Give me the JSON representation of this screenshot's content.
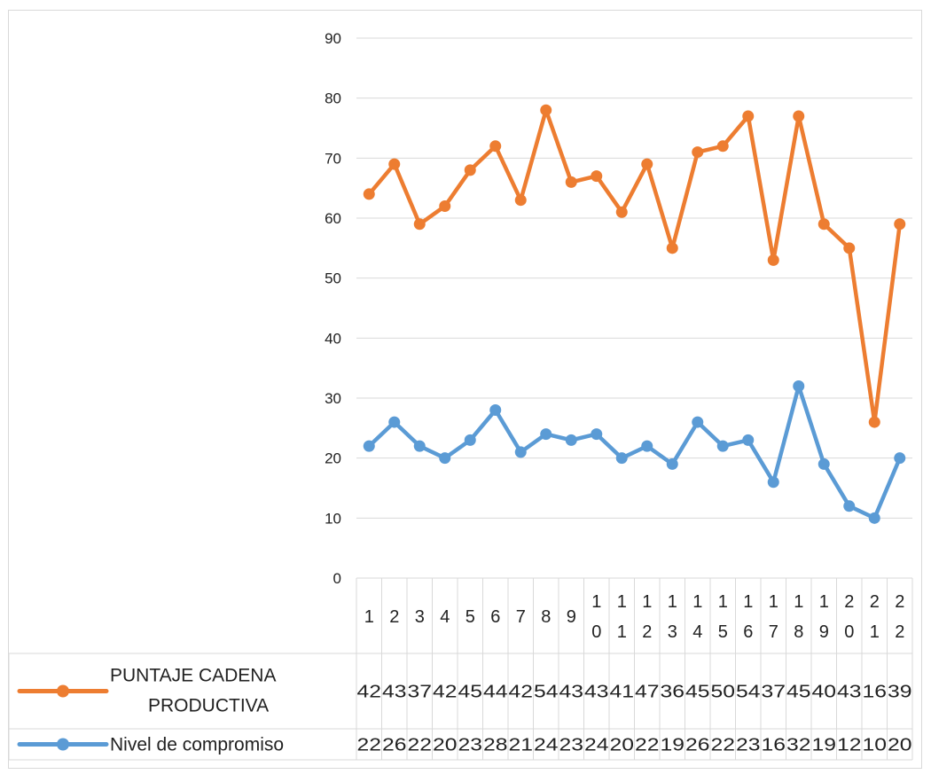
{
  "chart_data": {
    "type": "line",
    "categories": [
      "1",
      "2",
      "3",
      "4",
      "5",
      "6",
      "7",
      "8",
      "9",
      "10",
      "11",
      "12",
      "13",
      "14",
      "15",
      "16",
      "17",
      "18",
      "19",
      "20",
      "21",
      "22"
    ],
    "series": [
      {
        "name": "PUNTAJE CADENA PRODUCTIVA",
        "name_lines": [
          "PUNTAJE CADENA",
          "PRODUCTIVA"
        ],
        "color": "#ED7D31",
        "values": [
          64,
          69,
          59,
          62,
          68,
          72,
          63,
          78,
          66,
          67,
          61,
          69,
          55,
          71,
          72,
          77,
          53,
          77,
          59,
          55,
          26,
          59
        ],
        "table_values": [
          "42",
          "43",
          "37",
          "42",
          "45",
          "44",
          "42",
          "54",
          "43",
          "43",
          "41",
          "47",
          "36",
          "45",
          "50",
          "54",
          "37",
          "45",
          "40",
          "43",
          "16",
          "39"
        ]
      },
      {
        "name": "Nivel de compromiso",
        "name_lines": [
          "Nivel de compromiso"
        ],
        "color": "#5B9BD5",
        "values": [
          22,
          26,
          22,
          20,
          23,
          28,
          21,
          24,
          23,
          24,
          20,
          22,
          19,
          26,
          22,
          23,
          16,
          32,
          19,
          12,
          10,
          20
        ],
        "table_values": [
          "22",
          "26",
          "22",
          "20",
          "23",
          "28",
          "21",
          "24",
          "23",
          "24",
          "20",
          "22",
          "19",
          "26",
          "22",
          "23",
          "16",
          "32",
          "19",
          "12",
          "10",
          "20"
        ]
      }
    ],
    "y_ticks": [
      "0",
      "10",
      "20",
      "30",
      "40",
      "50",
      "60",
      "70",
      "80",
      "90"
    ],
    "ylim": [
      0,
      90
    ],
    "grid": true,
    "legend": "data-table"
  }
}
